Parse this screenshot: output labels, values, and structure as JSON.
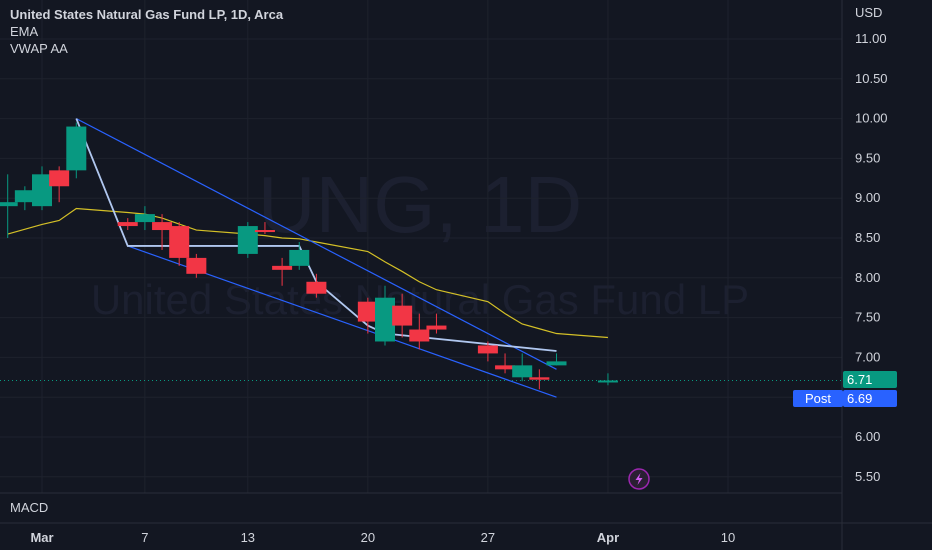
{
  "legend": {
    "title": "United States Natural Gas Fund LP, 1D, Arca",
    "ema_label": "EMA",
    "vwap_label": "VWAP AA"
  },
  "watermark": {
    "symbol": "UNG, 1D",
    "name": "United States Natural Gas Fund LP"
  },
  "price_axis": {
    "currency": "USD",
    "last_price": "6.71",
    "post_label": "Post",
    "post_price": "6.69"
  },
  "macd_label": "MACD",
  "colors": {
    "background": "#131722",
    "up": "#089981",
    "down": "#f23645",
    "ema": "#d4c027",
    "channel": "#2962ff",
    "vwap": "#b0c7ef",
    "post_tag": "#2962ff",
    "alert": "#9c27b0"
  },
  "chart_data": {
    "type": "candlestick",
    "ylim": [
      5.4,
      11.3
    ],
    "y_ticks": [
      5.5,
      6.0,
      6.5,
      7.0,
      7.5,
      8.0,
      8.5,
      9.0,
      9.5,
      10.0,
      10.5,
      11.0
    ],
    "y_tick_labels": [
      "5.50",
      "6.00",
      "6.50",
      "7.00",
      "7.50",
      "8.00",
      "8.50",
      "9.00",
      "9.50",
      "10.00",
      "10.50",
      "11.00"
    ],
    "x_ticks": [
      {
        "label": "Mar",
        "date": "2023-03-01"
      },
      {
        "label": "7",
        "date": "2023-03-07"
      },
      {
        "label": "13",
        "date": "2023-03-13"
      },
      {
        "label": "20",
        "date": "2023-03-20"
      },
      {
        "label": "27",
        "date": "2023-03-27"
      },
      {
        "label": "Apr",
        "date": "2023-04-03"
      },
      {
        "label": "10",
        "date": "2023-04-10"
      }
    ],
    "candles": [
      {
        "date": "2023-02-27",
        "open": 8.9,
        "high": 9.3,
        "low": 8.5,
        "close": 8.95
      },
      {
        "date": "2023-02-28",
        "open": 8.95,
        "high": 9.15,
        "low": 8.85,
        "close": 9.1
      },
      {
        "date": "2023-03-01",
        "open": 8.9,
        "high": 9.4,
        "low": 8.85,
        "close": 9.3
      },
      {
        "date": "2023-03-02",
        "open": 9.35,
        "high": 9.4,
        "low": 8.95,
        "close": 9.15
      },
      {
        "date": "2023-03-03",
        "open": 9.35,
        "high": 9.95,
        "low": 9.25,
        "close": 9.9
      },
      {
        "date": "2023-03-06",
        "open": 8.7,
        "high": 8.75,
        "low": 8.6,
        "close": 8.65
      },
      {
        "date": "2023-03-07",
        "open": 8.7,
        "high": 8.9,
        "low": 8.6,
        "close": 8.8
      },
      {
        "date": "2023-03-08",
        "open": 8.7,
        "high": 8.8,
        "low": 8.35,
        "close": 8.6
      },
      {
        "date": "2023-03-09",
        "open": 8.65,
        "high": 8.7,
        "low": 8.15,
        "close": 8.25
      },
      {
        "date": "2023-03-10",
        "open": 8.25,
        "high": 8.3,
        "low": 8.0,
        "close": 8.05
      },
      {
        "date": "2023-03-13",
        "open": 8.3,
        "high": 8.7,
        "low": 8.25,
        "close": 8.65
      },
      {
        "date": "2023-03-14",
        "open": 8.6,
        "high": 8.7,
        "low": 8.55,
        "close": 8.58
      },
      {
        "date": "2023-03-15",
        "open": 8.15,
        "high": 8.25,
        "low": 7.9,
        "close": 8.1
      },
      {
        "date": "2023-03-16",
        "open": 8.15,
        "high": 8.45,
        "low": 8.1,
        "close": 8.35
      },
      {
        "date": "2023-03-17",
        "open": 7.95,
        "high": 8.05,
        "low": 7.75,
        "close": 7.8
      },
      {
        "date": "2023-03-20",
        "open": 7.7,
        "high": 7.75,
        "low": 7.3,
        "close": 7.45
      },
      {
        "date": "2023-03-21",
        "open": 7.2,
        "high": 7.9,
        "low": 7.15,
        "close": 7.75
      },
      {
        "date": "2023-03-22",
        "open": 7.65,
        "high": 7.8,
        "low": 7.25,
        "close": 7.4
      },
      {
        "date": "2023-03-23",
        "open": 7.35,
        "high": 7.55,
        "low": 7.1,
        "close": 7.2
      },
      {
        "date": "2023-03-24",
        "open": 7.4,
        "high": 7.55,
        "low": 7.3,
        "close": 7.35
      },
      {
        "date": "2023-03-27",
        "open": 7.15,
        "high": 7.2,
        "low": 6.95,
        "close": 7.05
      },
      {
        "date": "2023-03-28",
        "open": 6.9,
        "high": 7.05,
        "low": 6.8,
        "close": 6.85
      },
      {
        "date": "2023-03-29",
        "open": 6.75,
        "high": 7.05,
        "low": 6.7,
        "close": 6.9
      },
      {
        "date": "2023-03-30",
        "open": 6.75,
        "high": 6.85,
        "low": 6.6,
        "close": 6.72
      },
      {
        "date": "2023-03-31",
        "open": 6.9,
        "high": 7.05,
        "low": 6.9,
        "close": 6.95
      },
      {
        "date": "2023-04-03",
        "open": 6.71,
        "high": 6.8,
        "low": 6.65,
        "close": 6.71
      }
    ],
    "ema": [
      {
        "date": "2023-02-27",
        "value": 8.55
      },
      {
        "date": "2023-03-01",
        "value": 8.67
      },
      {
        "date": "2023-03-02",
        "value": 8.72
      },
      {
        "date": "2023-03-03",
        "value": 8.87
      },
      {
        "date": "2023-03-06",
        "value": 8.82
      },
      {
        "date": "2023-03-07",
        "value": 8.8
      },
      {
        "date": "2023-03-08",
        "value": 8.75
      },
      {
        "date": "2023-03-10",
        "value": 8.6
      },
      {
        "date": "2023-03-13",
        "value": 8.55
      },
      {
        "date": "2023-03-14",
        "value": 8.53
      },
      {
        "date": "2023-03-15",
        "value": 8.5
      },
      {
        "date": "2023-03-16",
        "value": 8.49
      },
      {
        "date": "2023-03-17",
        "value": 8.45
      },
      {
        "date": "2023-03-20",
        "value": 8.33
      },
      {
        "date": "2023-03-21",
        "value": 8.2
      },
      {
        "date": "2023-03-22",
        "value": 8.08
      },
      {
        "date": "2023-03-23",
        "value": 7.95
      },
      {
        "date": "2023-03-24",
        "value": 7.85
      },
      {
        "date": "2023-03-27",
        "value": 7.7
      },
      {
        "date": "2023-03-28",
        "value": 7.55
      },
      {
        "date": "2023-03-29",
        "value": 7.42
      },
      {
        "date": "2023-03-30",
        "value": 7.36
      },
      {
        "date": "2023-03-31",
        "value": 7.3
      },
      {
        "date": "2023-04-03",
        "value": 7.25
      }
    ],
    "vwap": [
      {
        "date": "2023-03-03",
        "value": 10.0
      },
      {
        "date": "2023-03-06",
        "value": 8.4
      },
      {
        "date": "2023-03-16",
        "value": 8.4
      },
      {
        "date": "2023-03-17",
        "value": 7.95
      },
      {
        "date": "2023-03-20",
        "value": 7.4
      },
      {
        "date": "2023-03-21",
        "value": 7.3
      },
      {
        "date": "2023-03-31",
        "value": 7.08
      }
    ],
    "channel_lines": [
      {
        "from": {
          "date": "2023-03-03",
          "value": 10.0
        },
        "to": {
          "date": "2023-03-31",
          "value": 6.85
        }
      },
      {
        "from": {
          "date": "2023-03-06",
          "value": 8.4
        },
        "to": {
          "date": "2023-03-31",
          "value": 6.5
        }
      }
    ],
    "post_price": 6.69,
    "last_price": 6.71
  }
}
